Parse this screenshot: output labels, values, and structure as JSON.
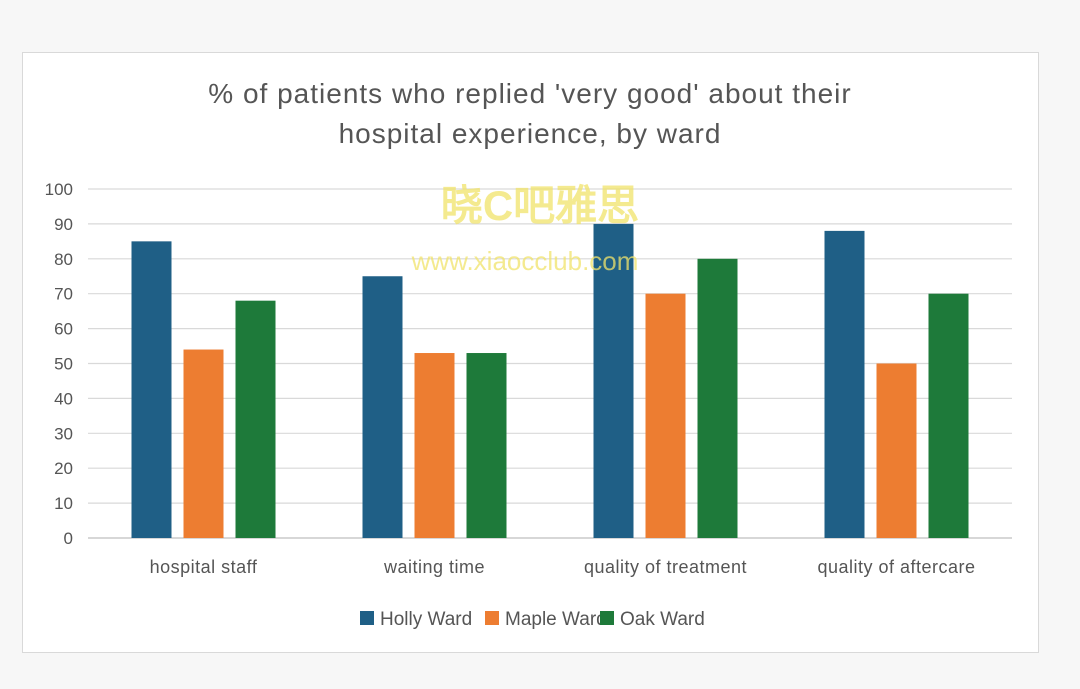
{
  "chart_data": {
    "type": "bar",
    "title_lines": [
      "% of patients who replied 'very good' about their",
      "hospital experience, by ward"
    ],
    "categories": [
      "hospital staff",
      "waiting time",
      "quality of treatment",
      "quality of aftercare"
    ],
    "series": [
      {
        "name": "Holly Ward",
        "color": "#1f5f86",
        "values": [
          85,
          75,
          90,
          88
        ]
      },
      {
        "name": "Maple Ward",
        "color": "#ed7d31",
        "values": [
          54,
          53,
          70,
          50
        ]
      },
      {
        "name": "Oak Ward",
        "color": "#1e7a3a",
        "values": [
          68,
          53,
          80,
          70
        ]
      }
    ],
    "ylim": [
      0,
      100
    ],
    "yticks": [
      "0",
      "10",
      "20",
      "30",
      "40",
      "50",
      "60",
      "70",
      "80",
      "90",
      "100"
    ],
    "grid": true,
    "legend_position": "bottom"
  },
  "watermark": {
    "line1": "晓C吧雅思",
    "line2": "www.xiaocclub.com"
  }
}
